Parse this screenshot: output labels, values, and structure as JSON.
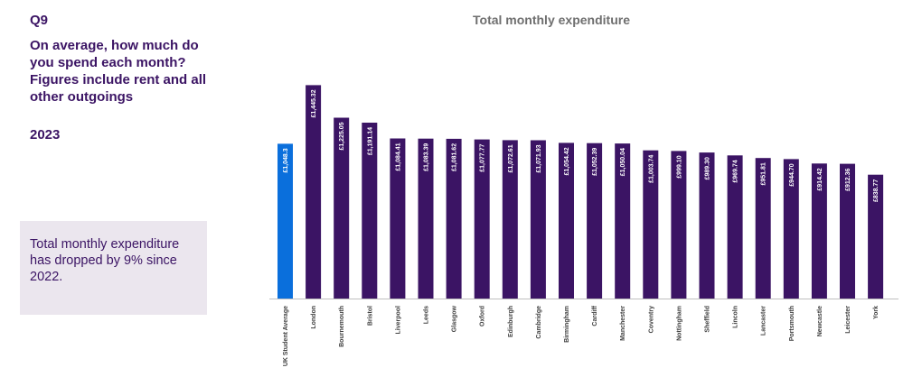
{
  "question": {
    "number": "Q9",
    "text": "On average, how much do you spend each month? Figures include rent and all other outgoings",
    "year": "2023"
  },
  "callout": {
    "text": "Total monthly expenditure has dropped by 9% since 2022."
  },
  "colors": {
    "highlight_bar": "#0a6fdc",
    "bar": "#3b1464",
    "text_dark": "#3b1464",
    "callout_bg": "#ebe6ee"
  },
  "chart_data": {
    "type": "bar",
    "title": "Total monthly expenditure",
    "categories": [
      "UK Student Average",
      "London",
      "Bournemouth",
      "Bristol",
      "Liverpool",
      "Leeds",
      "Glasgow",
      "Oxford",
      "Edinburgh",
      "Cambridge",
      "Birmingham",
      "Cardiff",
      "Manchester",
      "Coventry",
      "Nottingham",
      "Sheffield",
      "Lincoln",
      "Lancaster",
      "Portsmouth",
      "Newcastle",
      "Leicester",
      "York"
    ],
    "values": [
      1048.3,
      1445.32,
      1225.05,
      1191.14,
      1084.41,
      1083.39,
      1081.62,
      1077.77,
      1072.61,
      1071.93,
      1054.42,
      1052.39,
      1050.04,
      1003.74,
      999.1,
      989.3,
      969.74,
      951.81,
      944.7,
      914.42,
      912.36,
      838.77
    ],
    "labels": [
      "£1,048.3",
      "£1,445.32",
      "£1,225.05",
      "£1,191.14",
      "£1,084.41",
      "£1,083.39",
      "£1,081.62",
      "£1,077.77",
      "£1,072.61",
      "£1,071.93",
      "£1,054.42",
      "£1,052.39",
      "£1,050.04",
      "£1,003.74",
      "£999.10",
      "£989.30",
      "£969.74",
      "£951.81",
      "£944.70",
      "£914.42",
      "£912.36",
      "£838.77"
    ],
    "highlight_index": 0,
    "ylim": [
      0,
      1460
    ],
    "grid": false,
    "legend": "none"
  }
}
